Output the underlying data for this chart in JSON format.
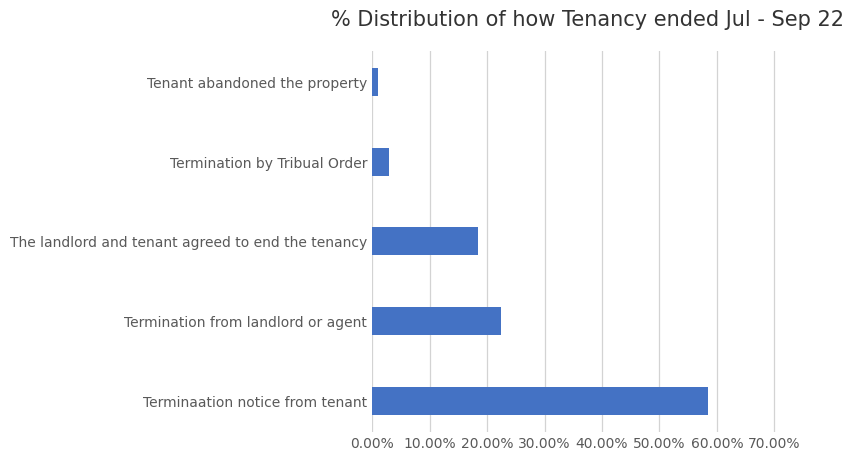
{
  "title": "% Distribution of how Tenancy ended Jul - Sep 22",
  "categories": [
    "Terminaation notice from tenant",
    "Termination from landlord or agent",
    "The landlord and tenant agreed to end the tenancy",
    "Termination by Tribual Order",
    "Tenant abandoned the property"
  ],
  "values": [
    0.585,
    0.225,
    0.185,
    0.03,
    0.01
  ],
  "bar_color": "#4472C4",
  "xlim": [
    0,
    0.75
  ],
  "xtick_values": [
    0.0,
    0.1,
    0.2,
    0.3,
    0.4,
    0.5,
    0.6,
    0.7
  ],
  "background_color": "#ffffff",
  "title_fontsize": 15,
  "label_fontsize": 10,
  "tick_fontsize": 10,
  "grid_color": "#d3d3d3"
}
